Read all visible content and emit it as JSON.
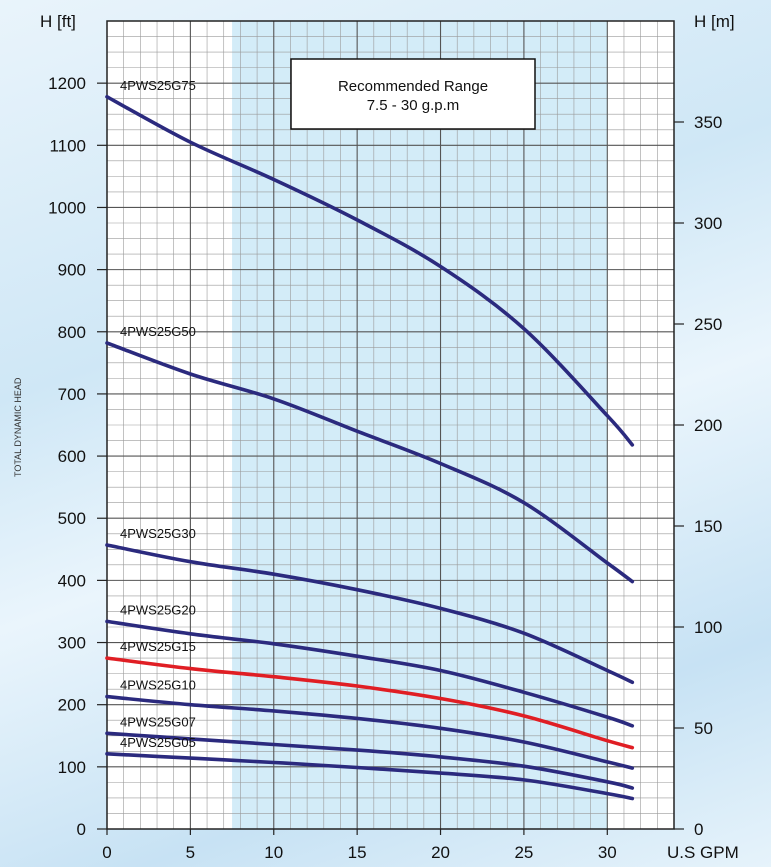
{
  "chart_data": {
    "type": "line",
    "xlabel": "U.S GPM",
    "ylabel_left": "H [ft]",
    "ylabel_right": "H [m]",
    "side_label": "TOTAL DYNAMIC HEAD",
    "xlim": [
      0,
      34
    ],
    "ylim_ft": [
      0,
      1300
    ],
    "ylim_m": [
      0,
      400
    ],
    "x_ticks": [
      0,
      5,
      10,
      15,
      20,
      25,
      30
    ],
    "y_ticks_ft": [
      0,
      100,
      200,
      300,
      400,
      500,
      600,
      700,
      800,
      900,
      1000,
      1100,
      1200
    ],
    "y_ticks_m": [
      0,
      50,
      100,
      150,
      200,
      250,
      300,
      350
    ],
    "grid": true,
    "recommended_range": {
      "x_from": 7.5,
      "x_to": 30,
      "label_line1": "Recommended Range",
      "label_line2": "7.5 - 30 g.p.m",
      "color": "#d3ecf8"
    },
    "series": [
      {
        "name": "4PWS25G75",
        "color": "#2b2a7e",
        "x": [
          0,
          5,
          10,
          15,
          20,
          25,
          30,
          31.5
        ],
        "y": [
          1178,
          1105,
          1045,
          980,
          905,
          805,
          665,
          618
        ]
      },
      {
        "name": "4PWS25G50",
        "color": "#2b2a7e",
        "x": [
          0,
          5,
          10,
          15,
          20,
          25,
          30,
          31.5
        ],
        "y": [
          782,
          732,
          692,
          640,
          588,
          525,
          428,
          398
        ]
      },
      {
        "name": "4PWS25G30",
        "color": "#2b2a7e",
        "x": [
          0,
          5,
          10,
          15,
          20,
          25,
          30,
          31.5
        ],
        "y": [
          457,
          430,
          410,
          385,
          355,
          315,
          255,
          236
        ]
      },
      {
        "name": "4PWS25G20",
        "color": "#2b2a7e",
        "x": [
          0,
          5,
          10,
          15,
          20,
          25,
          30,
          31.5
        ],
        "y": [
          334,
          314,
          298,
          278,
          255,
          220,
          180,
          166
        ]
      },
      {
        "name": "4PWS25G15",
        "color": "#e01e24",
        "x": [
          0,
          5,
          10,
          15,
          20,
          25,
          30,
          31.5
        ],
        "y": [
          275,
          258,
          245,
          230,
          210,
          182,
          142,
          131
        ]
      },
      {
        "name": "4PWS25G10",
        "color": "#2b2a7e",
        "x": [
          0,
          5,
          10,
          15,
          20,
          25,
          30,
          31.5
        ],
        "y": [
          213,
          200,
          190,
          178,
          162,
          140,
          108,
          98
        ]
      },
      {
        "name": "4PWS25G07",
        "color": "#2b2a7e",
        "x": [
          0,
          5,
          10,
          15,
          20,
          25,
          30,
          31.5
        ],
        "y": [
          154,
          145,
          136,
          127,
          116,
          101,
          76,
          66
        ]
      },
      {
        "name": "4PWS25G05",
        "color": "#2b2a7e",
        "x": [
          0,
          5,
          10,
          15,
          20,
          25,
          30,
          31.5
        ],
        "y": [
          121,
          114,
          107,
          99,
          90,
          79,
          57,
          49
        ]
      }
    ]
  }
}
